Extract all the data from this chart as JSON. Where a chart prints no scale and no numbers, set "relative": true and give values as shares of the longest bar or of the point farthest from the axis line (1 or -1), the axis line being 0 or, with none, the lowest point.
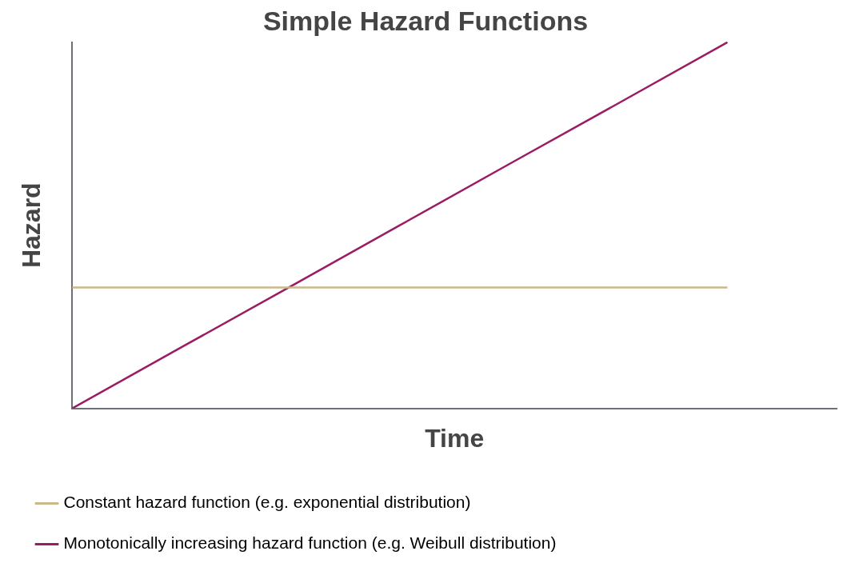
{
  "chart_data": {
    "type": "line",
    "title": "Simple Hazard Functions",
    "xlabel": "Time",
    "ylabel": "Hazard",
    "relative": true,
    "categories": [
      null,
      null,
      null,
      null,
      null,
      null,
      null,
      null
    ],
    "series": [
      {
        "name": "Constant hazard function (e.g. exponential distribution)",
        "color": "#c8b88a",
        "values": [
          0.33,
          0.33,
          0.33,
          0.33,
          0.33,
          0.33,
          0.33,
          null
        ]
      },
      {
        "name": "Monotonically increasing hazard function (e.g. Weibull distribution)",
        "color": "#9b1b64",
        "values": [
          0,
          0.167,
          0.333,
          0.5,
          0.667,
          0.833,
          1,
          null
        ]
      }
    ],
    "grid": false,
    "legend": "bottom",
    "marker": "none",
    "line_style": "solid"
  }
}
